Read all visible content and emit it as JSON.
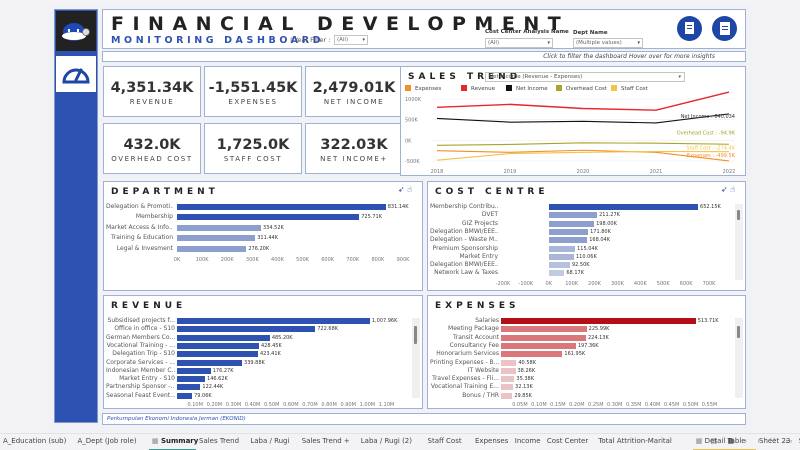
{
  "header": {
    "title": "FINANCIAL DEVELOPMENT",
    "subtitle": "MONITORING DASHBOARD",
    "year_filter_label": "| Year Filter :",
    "year_filter_value": "(All)",
    "cost_center_label": "Cost Center  Analysis Name",
    "cost_center_value": "(All)",
    "dept_name_label": "Dept Name",
    "dept_name_value": "(Multiple values)",
    "hint_text": "Click to filter the dashboard   Hover over for more insights"
  },
  "kpis": [
    {
      "value": "4,351.34K",
      "label": "REVENUE"
    },
    {
      "value": "-1,551.45K",
      "label": "EXPENSES"
    },
    {
      "value": "2,479.01K",
      "label": "NET INCOME"
    },
    {
      "value": "432.0K",
      "label": "OVERHEAD COST"
    },
    {
      "value": "1,725.0K",
      "label": "STAFF COST"
    },
    {
      "value": "322.03K",
      "label": "NET INCOME+"
    }
  ],
  "sales_trend": {
    "title": "SALES TREND",
    "selector_value": "Net Income (Revenue - Expenses)"
  },
  "chart_data": [
    {
      "type": "line",
      "title": "SALES TREND",
      "x": [
        "2018",
        "2019",
        "2020",
        "2021",
        "2022"
      ],
      "ylim": [
        -500000,
        1000000
      ],
      "yticks": [
        "1000K",
        "500K",
        "0K",
        "-500K"
      ],
      "series": [
        {
          "name": "Expenses",
          "color": "#f28e2b",
          "values": [
            -250000,
            -290000,
            -240000,
            -290000,
            -499500
          ]
        },
        {
          "name": "Revenue",
          "color": "#e8262b",
          "values": [
            800000,
            870000,
            770000,
            730000,
            1168000
          ]
        },
        {
          "name": "Net Income",
          "color": "#111111",
          "values": [
            530000,
            440000,
            460000,
            420000,
            640034
          ]
        },
        {
          "name": "Overhead Cost",
          "color": "#a6a62a",
          "values": [
            -120000,
            -100000,
            -60000,
            -70000,
            -94900
          ]
        },
        {
          "name": "Staff Cost",
          "color": "#f2c447",
          "values": [
            -480000,
            -320000,
            -290000,
            -270000,
            -274400
          ]
        }
      ],
      "end_labels": [
        {
          "series": "Revenue",
          "text": "Revenue : 1,168K"
        },
        {
          "series": "Net Income",
          "text": "Net Income : 640,034"
        },
        {
          "series": "Overhead Cost",
          "text": "Overhead Cost : -94.9K"
        },
        {
          "series": "Staff Cost",
          "text": "Staff Cost : -274.4K"
        },
        {
          "series": "Expenses",
          "text": "Expenses : -499.5K"
        }
      ],
      "legend": "top"
    },
    {
      "type": "bar",
      "title": "DEPARTMENT",
      "categories": [
        "Delegation & Promoti...",
        "Membership",
        "Market Access & Info...",
        "Training & Education",
        "Legal & Invesment"
      ],
      "values": [
        831140,
        725710,
        334520,
        311440,
        276200
      ],
      "value_labels": [
        "831.14K",
        "725.71K",
        "334.52K",
        "311.44K",
        "276.20K"
      ],
      "colors": [
        "#2e52b2",
        "#2e52b2",
        "#8d9fcc",
        "#8d9fcc",
        "#8d9fcc"
      ],
      "xlim": [
        0,
        900000
      ],
      "xticks": [
        "0K",
        "100K",
        "200K",
        "300K",
        "400K",
        "500K",
        "600K",
        "700K",
        "800K",
        "900K"
      ]
    },
    {
      "type": "bar",
      "title": "COST CENTRE",
      "categories": [
        "Membership Contribu...",
        "DVET",
        "GIZ Projects",
        "Delegation BMWI/EEE...",
        "Delegation - Waste M...",
        "Premium Sponsorship",
        "Market Entry",
        "Delegation BMWI/EEE...",
        "Network Law & Taxes"
      ],
      "values": [
        652150,
        211270,
        198000,
        171800,
        168040,
        115040,
        110060,
        92500,
        68170
      ],
      "value_labels": [
        "652.15K",
        "211.27K",
        "198.00K",
        "171.80K",
        "168.04K",
        "115.04K",
        "110.06K",
        "92.50K",
        "68.17K"
      ],
      "colors": [
        "#2e52b2",
        "#8d9fcc",
        "#8d9fcc",
        "#8d9fcc",
        "#8d9fcc",
        "#a9b6d9",
        "#a9b6d9",
        "#b6c1df",
        "#c2cbe4"
      ],
      "xlim": [
        -200000,
        700000
      ],
      "xticks": [
        "-200K",
        "-100K",
        "0K",
        "100K",
        "200K",
        "300K",
        "400K",
        "500K",
        "600K",
        "700K"
      ]
    },
    {
      "type": "bar",
      "title": "REVENUE",
      "categories": [
        "Subsidised projects f...",
        "Office in office - S10",
        "German Members Co...",
        "Vocational Training - ...",
        "Delegation Trip - S10",
        "Corporate Services - ...",
        "Indonesian Member C...",
        "Market Entry - S10",
        "Partnership Sponsor -...",
        "Seasonal Feast Event..."
      ],
      "values": [
        1007960,
        722680,
        485200,
        428450,
        423410,
        339880,
        176270,
        146620,
        122440,
        79060
      ],
      "value_labels": [
        "1,007.96K",
        "722.68K",
        "485.20K",
        "428.45K",
        "423.41K",
        "339.88K",
        "176.27K",
        "146.62K",
        "122.44K",
        "79.06K"
      ],
      "colors": [
        "#2e52b2"
      ],
      "xlim": [
        0,
        1150000
      ],
      "xticks": [
        "0.10M",
        "0.20M",
        "0.30M",
        "0.40M",
        "0.50M",
        "0.60M",
        "0.70M",
        "0.80M",
        "0.90M",
        "1.00M",
        "1.10M"
      ]
    },
    {
      "type": "bar",
      "title": "EXPENSES",
      "categories": [
        "Salaries",
        "Meeting Package",
        "Transit Account",
        "Consultancy Fee",
        "Honorarium Services",
        "Printing Expenses - B...",
        "IT Website",
        "Travel Expenses - Fli...",
        "Vocational Training E...",
        "Bonus / THR"
      ],
      "values": [
        513710,
        225990,
        224130,
        197360,
        161950,
        40580,
        38260,
        35380,
        32130,
        29850
      ],
      "value_labels": [
        "513.71K",
        "225.99K",
        "224.13K",
        "197.36K",
        "161.95K",
        "40.58K",
        "38.26K",
        "35.38K",
        "32.13K",
        "29.85K"
      ],
      "colors": [
        "#b30f14",
        "#d9777a",
        "#d9777a",
        "#d9777a",
        "#d9777a",
        "#ecc3c4",
        "#ecc3c4",
        "#ecc3c4",
        "#ecc3c4",
        "#ecc3c4"
      ],
      "xlim": [
        0,
        575000
      ],
      "xticks": [
        "0.05M",
        "0.10M",
        "0.15M",
        "0.20M",
        "0.25M",
        "0.30M",
        "0.35M",
        "0.40M",
        "0.45M",
        "0.50M",
        "0.55M"
      ]
    }
  ],
  "footer": {
    "org": "Perkumpulan Ekonomi Indonesia Jerman (EKONID)"
  },
  "tabs": [
    {
      "label": "A_Education (sub)"
    },
    {
      "label": "A_Dept (Job role)"
    },
    {
      "label": "Summary",
      "active": true,
      "icon": "dashboard-icon"
    },
    {
      "label": "Sales Trend"
    },
    {
      "label": "Laba / Rugi"
    },
    {
      "label": "Sales Trend +"
    },
    {
      "label": "Laba / Rugi (2)"
    },
    {
      "label": "Staff Cost"
    },
    {
      "label": "Expenses"
    },
    {
      "label": "Income"
    },
    {
      "label": "Cost Center"
    },
    {
      "label": "Total Attrition-Marital"
    },
    {
      "label": "Detail Table",
      "icon": "dashboard-icon"
    },
    {
      "label": "Sheet 23"
    },
    {
      "label": "Sheet 24"
    },
    {
      "label": "Sheet 25"
    }
  ],
  "icons": {
    "logo": "robot-logo-icon",
    "gauge": "speedometer-icon",
    "click": "click-cursor-icon",
    "hover": "hover-hand-icon",
    "export1": "document-export-icon",
    "export2": "document-icon"
  }
}
